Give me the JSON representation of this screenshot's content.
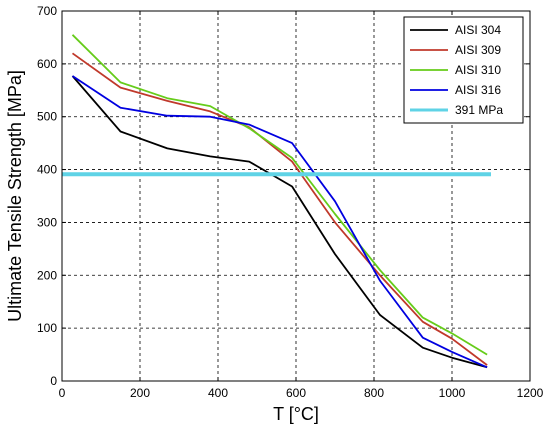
{
  "chart_data": {
    "type": "line",
    "title": "",
    "xlabel": "T [°C]",
    "ylabel": "Ultimate Tensile Strength [MPa]",
    "xlim": [
      0,
      1200
    ],
    "ylim": [
      0,
      700
    ],
    "xticks": [
      0,
      200,
      400,
      600,
      800,
      1000,
      1200
    ],
    "yticks": [
      0,
      100,
      200,
      300,
      400,
      500,
      600,
      700
    ],
    "grid": true,
    "legend_position": "top-right",
    "series": [
      {
        "name": "AISI 304",
        "color": "#000000",
        "x": [
          27,
          150,
          270,
          380,
          480,
          590,
          700,
          815,
          925,
          1000,
          1090
        ],
        "y": [
          577,
          472,
          440,
          425,
          415,
          368,
          240,
          125,
          63,
          44,
          26
        ]
      },
      {
        "name": "AISI 309",
        "color": "#c0392b",
        "x": [
          27,
          150,
          270,
          380,
          480,
          590,
          700,
          815,
          925,
          1000,
          1090
        ],
        "y": [
          620,
          555,
          530,
          510,
          480,
          415,
          300,
          200,
          112,
          80,
          30
        ]
      },
      {
        "name": "AISI 310",
        "color": "#66cc1a",
        "x": [
          27,
          150,
          270,
          380,
          480,
          590,
          700,
          815,
          925,
          1000,
          1090
        ],
        "y": [
          655,
          565,
          535,
          520,
          478,
          422,
          316,
          210,
          120,
          90,
          50
        ]
      },
      {
        "name": "AISI 316",
        "color": "#0000e0",
        "x": [
          27,
          150,
          270,
          380,
          480,
          590,
          700,
          815,
          925,
          1000,
          1090
        ],
        "y": [
          577,
          517,
          502,
          500,
          485,
          450,
          340,
          190,
          82,
          55,
          26
        ]
      },
      {
        "name": "391 MPa",
        "color": "#5fd3e6",
        "x": [
          0,
          1100
        ],
        "y": [
          391,
          391
        ]
      }
    ]
  }
}
